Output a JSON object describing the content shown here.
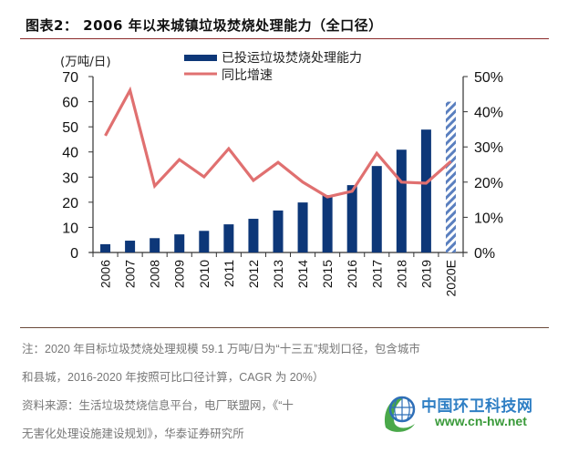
{
  "title": "图表2：  2006 年以来城镇垃圾焚烧处理能力（全口径）",
  "chart_data": {
    "type": "bar+line",
    "title": "2006 年以来城镇垃圾焚烧处理能力（全口径）",
    "ylabel_left": "(万吨/日)",
    "categories": [
      "2006",
      "2007",
      "2008",
      "2009",
      "2010",
      "2011",
      "2012",
      "2013",
      "2014",
      "2015",
      "2016",
      "2017",
      "2018",
      "2019",
      "2020E"
    ],
    "series": [
      {
        "name": "已投运垃圾焚烧处理能力",
        "type": "bar",
        "axis": "left",
        "color": "#0d3778",
        "values": [
          3.3,
          4.7,
          5.7,
          7.2,
          8.6,
          11.2,
          13.4,
          16.7,
          19.9,
          22.8,
          26.8,
          34.4,
          40.9,
          48.9,
          60.0
        ],
        "hatched_categories": [
          "2020E"
        ]
      },
      {
        "name": "同比增速",
        "type": "line",
        "axis": "right",
        "color": "#e07070",
        "values": [
          33.2,
          46.1,
          18.9,
          26.4,
          21.5,
          29.5,
          20.5,
          25.6,
          20.0,
          15.8,
          17.4,
          28.2,
          20.0,
          19.7,
          25.9
        ]
      }
    ],
    "ylim_left": [
      0,
      70
    ],
    "yticks_left": [
      "0",
      "10",
      "20",
      "30",
      "40",
      "50",
      "60",
      "70"
    ],
    "ylim_right": [
      0,
      50
    ],
    "yticks_right": [
      "0%",
      "10%",
      "20%",
      "30%",
      "40%",
      "50%"
    ],
    "legend_position": "top-center",
    "grid": false
  },
  "notes": {
    "line1": "注：2020 年目标垃圾焚烧处理规模 59.1 万吨/日为“十三五”规划口径，包含城市",
    "line2": "和县城，2016-2020 年按照可比口径计算，CAGR 为 20%）",
    "line3": "资料来源：生活垃圾焚烧信息平台，电厂联盟网，《“十",
    "line4": "无害化处理设施建设规划》，华泰证券研究所"
  },
  "watermark": {
    "name": "中国环卫科技网",
    "url": "www.cn-hw.net"
  }
}
